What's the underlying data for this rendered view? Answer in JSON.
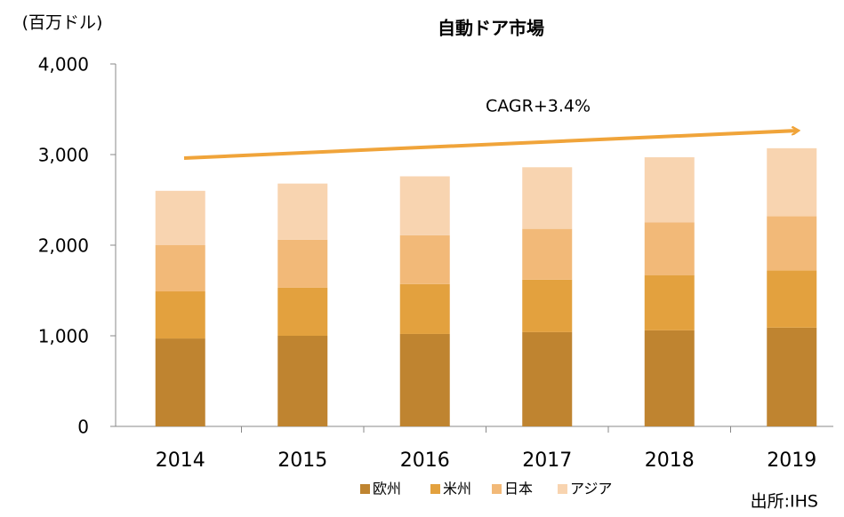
{
  "chart_data": {
    "type": "stacked_bar",
    "title": "自動ドア市場",
    "y_axis_label": "(百万ドル)",
    "categories": [
      "2014",
      "2015",
      "2016",
      "2017",
      "2018",
      "2019"
    ],
    "series": [
      {
        "name": "欧州",
        "color": "#bf8430",
        "values": [
          970,
          1000,
          1020,
          1040,
          1060,
          1090
        ]
      },
      {
        "name": "米州",
        "color": "#e3a13e",
        "values": [
          520,
          530,
          550,
          580,
          610,
          630
        ]
      },
      {
        "name": "日本",
        "color": "#f2b978",
        "values": [
          510,
          530,
          540,
          560,
          580,
          600
        ]
      },
      {
        "name": "アジア",
        "color": "#f8d4b0",
        "values": [
          600,
          620,
          650,
          680,
          720,
          750
        ]
      }
    ],
    "ylim": [
      0,
      4000
    ],
    "yticks": [
      0,
      {
        "value": 1000,
        "label": "1,000"
      },
      {
        "value": 2000,
        "label": "2,000"
      },
      {
        "value": 3000,
        "label": "3,000"
      },
      {
        "value": 4000,
        "label": "4,000"
      }
    ],
    "annotation": "CAGR+3.4%",
    "source": "出所:IHS"
  }
}
